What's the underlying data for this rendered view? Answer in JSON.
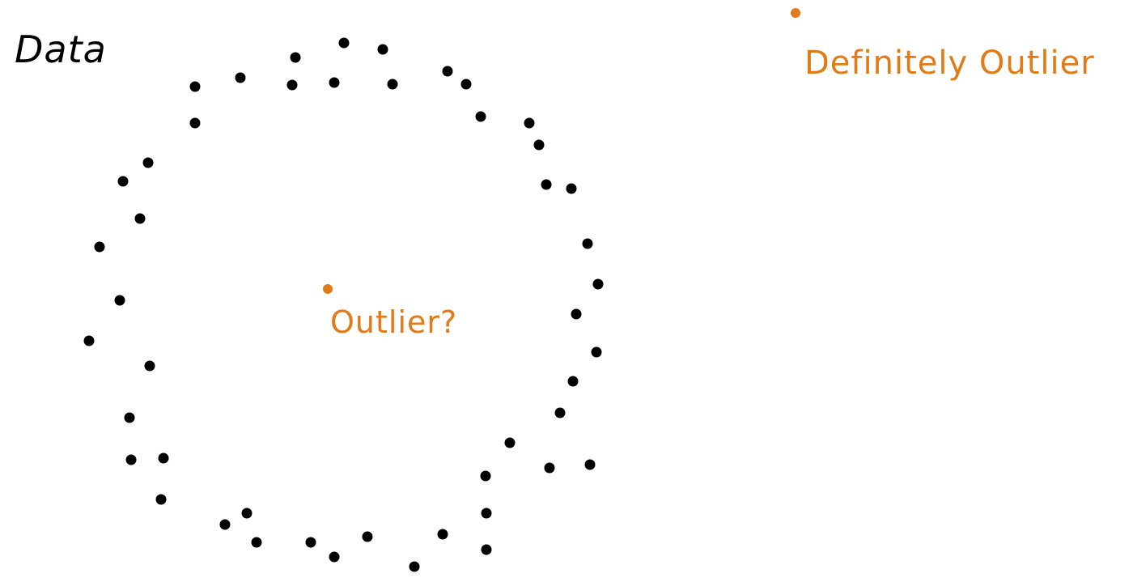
{
  "title": "Data",
  "annotations": {
    "inner_outlier": "Outlier?",
    "far_outlier": "Definitely Outlier"
  },
  "colors": {
    "data_point": "#000000",
    "outlier": "#e07b17",
    "title": "#000000"
  },
  "chart_data": {
    "type": "scatter",
    "grid": false,
    "legend": false,
    "series": [
      {
        "points": [
          [
            425,
            53
          ],
          [
            473,
            61
          ],
          [
            365,
            71
          ],
          [
            553,
            88
          ],
          [
            576,
            104
          ],
          [
            297,
            96
          ],
          [
            241,
            107
          ],
          [
            361,
            105
          ],
          [
            413,
            102
          ],
          [
            485,
            104
          ],
          [
            594,
            144
          ],
          [
            654,
            152
          ],
          [
            666,
            179
          ],
          [
            241,
            152
          ],
          [
            183,
            201
          ],
          [
            152,
            224
          ],
          [
            675,
            228
          ],
          [
            706,
            233
          ],
          [
            173,
            270
          ],
          [
            123,
            305
          ],
          [
            726,
            301
          ],
          [
            739,
            351
          ],
          [
            148,
            371
          ],
          [
            712,
            388
          ],
          [
            110,
            421
          ],
          [
            737,
            435
          ],
          [
            185,
            452
          ],
          [
            708,
            471
          ],
          [
            160,
            516
          ],
          [
            692,
            510
          ],
          [
            630,
            547
          ],
          [
            162,
            568
          ],
          [
            202,
            566
          ],
          [
            679,
            578
          ],
          [
            729,
            574
          ],
          [
            600,
            588
          ],
          [
            199,
            617
          ],
          [
            601,
            634
          ],
          [
            305,
            634
          ],
          [
            278,
            648
          ],
          [
            547,
            660
          ],
          [
            317,
            670
          ],
          [
            384,
            670
          ],
          [
            454,
            663
          ],
          [
            413,
            688
          ],
          [
            601,
            679
          ],
          [
            512,
            700
          ]
        ]
      },
      {
        "outlier": true,
        "points": [
          [
            405,
            357
          ],
          [
            983,
            16
          ]
        ]
      }
    ]
  }
}
